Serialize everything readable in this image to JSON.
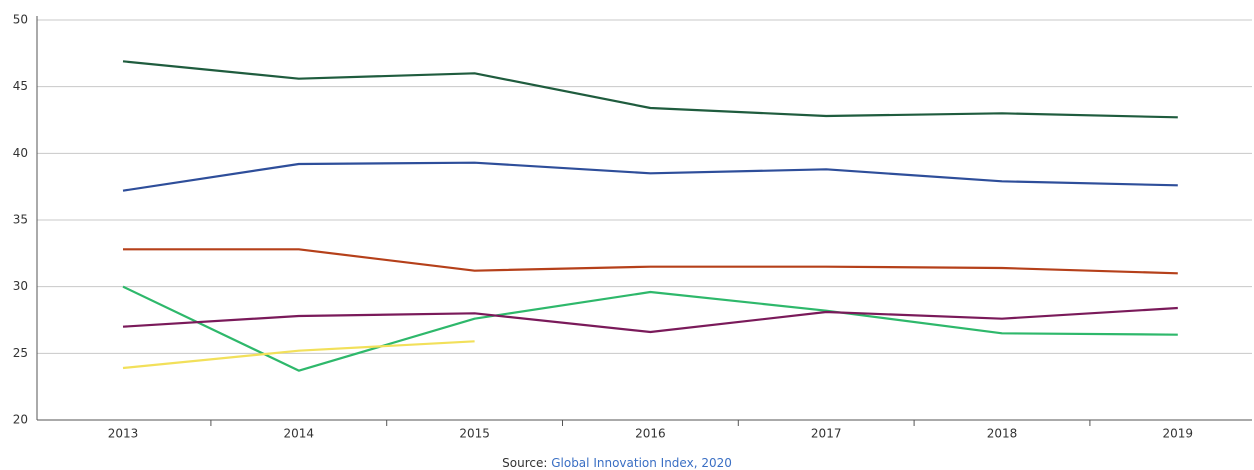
{
  "chart_data": {
    "type": "line",
    "categories": [
      "2013",
      "2014",
      "2015",
      "2016",
      "2017",
      "2018",
      "2019"
    ],
    "series": [
      {
        "color": "#1f5c3e",
        "values": [
          46.9,
          45.6,
          46.0,
          43.4,
          42.8,
          43.0,
          42.7
        ]
      },
      {
        "color": "#2e4e9a",
        "values": [
          37.2,
          39.2,
          39.3,
          38.5,
          38.8,
          37.9,
          37.6
        ]
      },
      {
        "color": "#b5401a",
        "values": [
          32.8,
          32.8,
          31.2,
          31.5,
          31.5,
          31.4,
          31.0
        ]
      },
      {
        "color": "#2eb86b",
        "values": [
          30.0,
          23.7,
          27.6,
          29.6,
          28.2,
          26.5,
          26.4
        ]
      },
      {
        "color": "#7a1a5a",
        "values": [
          27.0,
          27.8,
          28.0,
          26.6,
          28.1,
          27.6,
          28.4
        ]
      },
      {
        "color": "#f2e05a",
        "values": [
          23.9,
          25.2,
          25.9,
          null,
          null,
          null,
          null
        ]
      }
    ],
    "ylim": [
      20,
      50
    ],
    "yticks": [
      20,
      25,
      30,
      35,
      40,
      45,
      50
    ],
    "grid": true,
    "source_label": "Source:",
    "source": "Global Innovation Index, 2020"
  }
}
